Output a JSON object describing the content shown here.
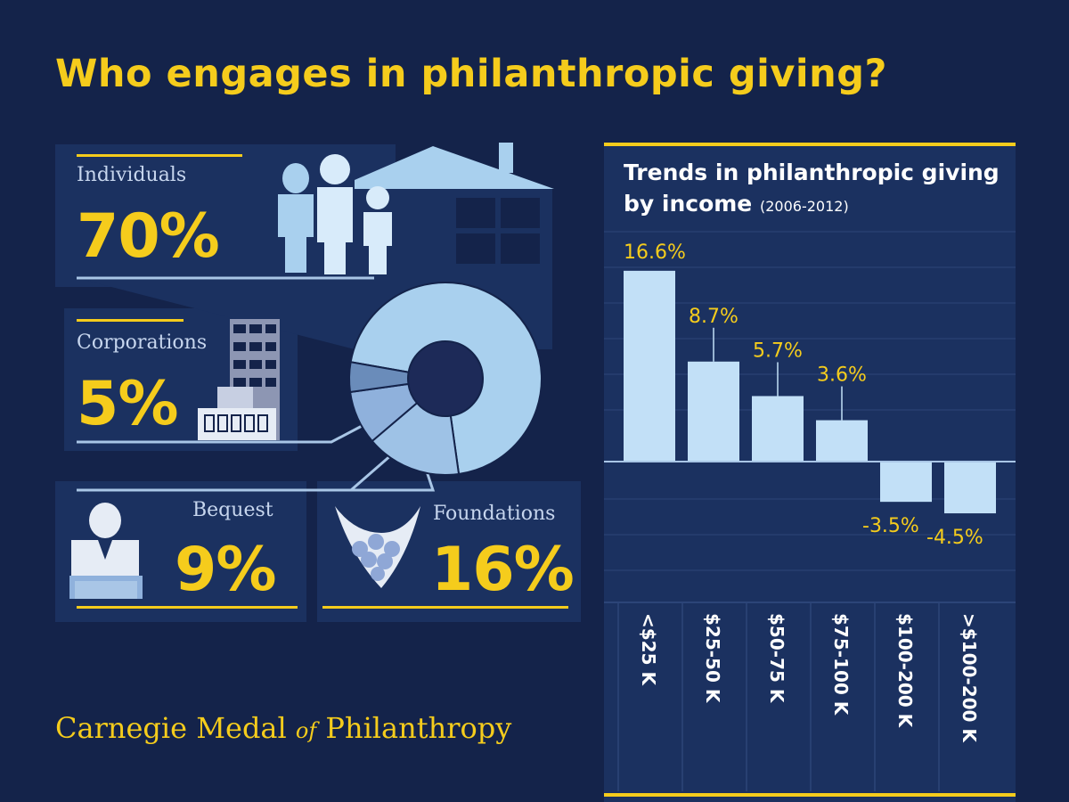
{
  "title": "Who engages in philanthropic giving?",
  "segments": [
    {
      "label": "Individuals",
      "value_text": "70%",
      "value": 70,
      "color": "#a9d0ee"
    },
    {
      "label": "Corporations",
      "value_text": "5%",
      "value": 5,
      "color": "#6a8cba"
    },
    {
      "label": "Bequest",
      "value_text": "9%",
      "value": 9,
      "color": "#8fb1dc"
    },
    {
      "label": "Foundations",
      "value_text": "16%",
      "value": 16,
      "color": "#9ec2e6"
    }
  ],
  "chart_title": {
    "line1": "Trends in philanthropic giving",
    "line2": "by income",
    "period": "(2006-2012)"
  },
  "footer": {
    "part1": "Carnegie Medal",
    "part2": "of",
    "part3": "Philanthropy"
  },
  "chart_data": [
    {
      "type": "pie",
      "categories": [
        "Individuals",
        "Corporations",
        "Bequest",
        "Foundations"
      ],
      "values": [
        70,
        5,
        9,
        16
      ],
      "title": "Who engages in philanthropic giving?"
    },
    {
      "type": "bar",
      "title": "Trends in philanthropic giving by income (2006-2012)",
      "categories": [
        "<$25 K",
        "$25-50 K",
        "$50-75 K",
        "$75-100 K",
        "$100-200 K",
        ">$100-200 K"
      ],
      "values": [
        16.6,
        8.7,
        5.7,
        3.6,
        -3.5,
        -4.5
      ],
      "value_labels": [
        "16.6%",
        "8.7%",
        "5.7%",
        "3.6%",
        "-3.5%",
        "-4.5%"
      ],
      "xlabel": "",
      "ylabel": "",
      "ylim": [
        -5,
        18
      ],
      "bar_color": "#c2e0f7",
      "label_color": "#f5cc1c"
    }
  ]
}
